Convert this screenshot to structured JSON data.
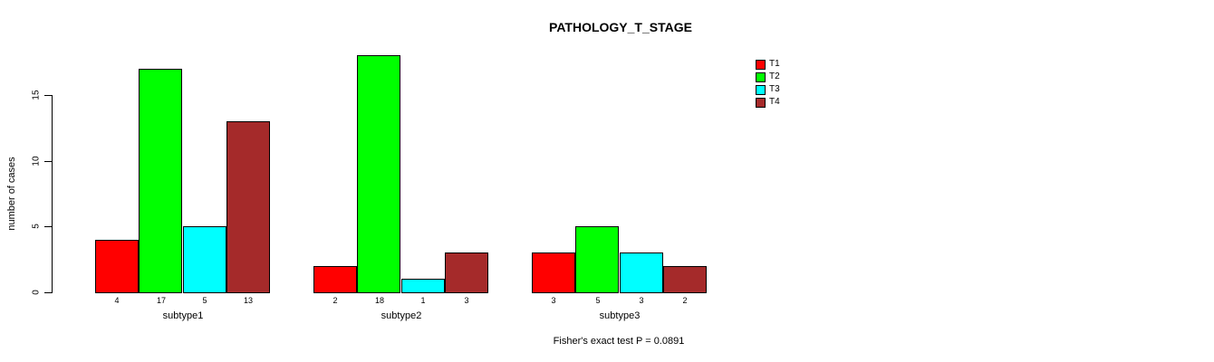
{
  "chart_data": {
    "type": "bar",
    "title": "PATHOLOGY_T_STAGE",
    "ylabel": "number of cases",
    "xlabel": "",
    "categories": [
      "subtype1",
      "subtype2",
      "subtype3"
    ],
    "series": [
      {
        "name": "T1",
        "color": "#FF0000",
        "values": [
          4,
          2,
          3
        ]
      },
      {
        "name": "T2",
        "color": "#00FF00",
        "values": [
          17,
          18,
          5
        ]
      },
      {
        "name": "T3",
        "color": "#00FFFF",
        "values": [
          5,
          1,
          3
        ]
      },
      {
        "name": "T4",
        "color": "#A52A2A",
        "values": [
          13,
          3,
          2
        ]
      }
    ],
    "bar_value_labels": [
      [
        "4",
        "17",
        "5",
        "13"
      ],
      [
        "2",
        "18",
        "1",
        "3"
      ],
      [
        "3",
        "5",
        "3",
        "2"
      ]
    ],
    "yticks": [
      0,
      5,
      10,
      15
    ],
    "ylim": [
      0,
      18
    ],
    "grid": "off",
    "legend_position": "top-right",
    "footnote": "Fisher's exact test P = 0.0891",
    "background_color": "#FFFFFF",
    "axis_color": "#000000"
  }
}
